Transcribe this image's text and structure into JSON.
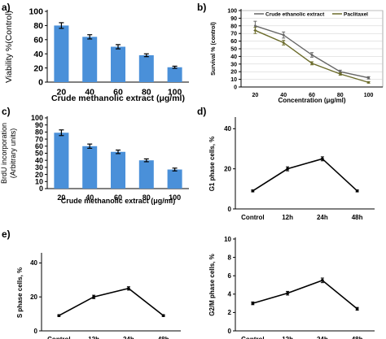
{
  "chart_data": [
    {
      "panel": "a",
      "type": "bar",
      "categories": [
        "20",
        "40",
        "60",
        "80",
        "100"
      ],
      "values": [
        80,
        64,
        50,
        38,
        21
      ],
      "errors": [
        4,
        3,
        3,
        2,
        1.5
      ],
      "y_ticks": [
        "0",
        "20",
        "40",
        "60",
        "80",
        "100"
      ],
      "xlabel": "Crude methanolic extract (μg/ml)",
      "ylabel": "Viability %(Control)",
      "ylim": [
        0,
        100
      ],
      "color": "#4a90d9"
    },
    {
      "panel": "b",
      "type": "line",
      "x": [
        "20",
        "40",
        "60",
        "80",
        "100"
      ],
      "series": [
        {
          "name": "Crude ethanolic extract",
          "values": [
            80,
            68,
            42,
            20,
            12
          ],
          "errors": [
            6,
            4,
            3,
            2,
            1.5
          ],
          "color": "#666666"
        },
        {
          "name": "Paclitaxel",
          "values": [
            74,
            58,
            31,
            17,
            6
          ],
          "errors": [
            4,
            3,
            2,
            1.5,
            1
          ],
          "color": "#6b6b2a"
        }
      ],
      "y_ticks": [
        "0",
        "10",
        "20",
        "30",
        "40",
        "50",
        "60",
        "70",
        "80",
        "90",
        "100"
      ],
      "xlabel": "Concentration (μg/ml)",
      "ylabel": "Survival % (control)",
      "ylim": [
        0,
        100
      ],
      "legend": "top"
    },
    {
      "panel": "c",
      "type": "bar",
      "categories": [
        "20",
        "40",
        "60",
        "80",
        "100"
      ],
      "values": [
        79,
        60,
        52,
        40,
        27
      ],
      "errors": [
        4,
        3,
        2.5,
        2,
        2
      ],
      "y_ticks": [
        "0",
        "10",
        "20",
        "30",
        "40",
        "50",
        "60",
        "70",
        "80",
        "90",
        "100"
      ],
      "xlabel": "Crude methanolic extract (μg/ml)",
      "ylabel": "BrdU incorporation (Arbitrary units)",
      "ylabel_lines": [
        "BrdU incorporation",
        "(Arbitrary units)"
      ],
      "ylim": [
        0,
        100
      ],
      "color": "#4a90d9"
    },
    {
      "panel": "d",
      "type": "line",
      "x": [
        "Control",
        "12h",
        "24h",
        "48h"
      ],
      "series": [
        {
          "values": [
            9,
            20,
            25,
            9
          ],
          "errors": [
            0.5,
            1,
            1,
            0.5
          ],
          "color": "#000000"
        }
      ],
      "y_ticks": [
        "0",
        "20",
        "40"
      ],
      "xlabel": "",
      "ylabel": "G1 phase cells, %",
      "ylim": [
        0,
        45
      ]
    },
    {
      "panel": "e",
      "type": "line",
      "x": [
        "Control",
        "12h",
        "24h",
        "48h"
      ],
      "series": [
        {
          "values": [
            9,
            20,
            25,
            9
          ],
          "errors": [
            0.5,
            1,
            1,
            0.5
          ],
          "color": "#000000"
        }
      ],
      "y_ticks": [
        "0",
        "20",
        "40"
      ],
      "xlabel": "",
      "ylabel": "S phase cells, %",
      "ylim": [
        0,
        45
      ]
    },
    {
      "panel": "f",
      "type": "line",
      "x": [
        "Control",
        "12h",
        "24h",
        "48h"
      ],
      "series": [
        {
          "values": [
            3,
            4.1,
            5.5,
            2.4
          ],
          "errors": [
            0.15,
            0.2,
            0.25,
            0.15
          ],
          "color": "#000000"
        }
      ],
      "y_ticks": [
        "0",
        "2",
        "4",
        "6",
        "8",
        "10"
      ],
      "xlabel": "",
      "ylabel": "G2/M phase cells, %",
      "ylim": [
        0,
        10
      ]
    }
  ],
  "panel_labels": [
    "a)",
    "b)",
    "c)",
    "d)",
    "e)"
  ]
}
